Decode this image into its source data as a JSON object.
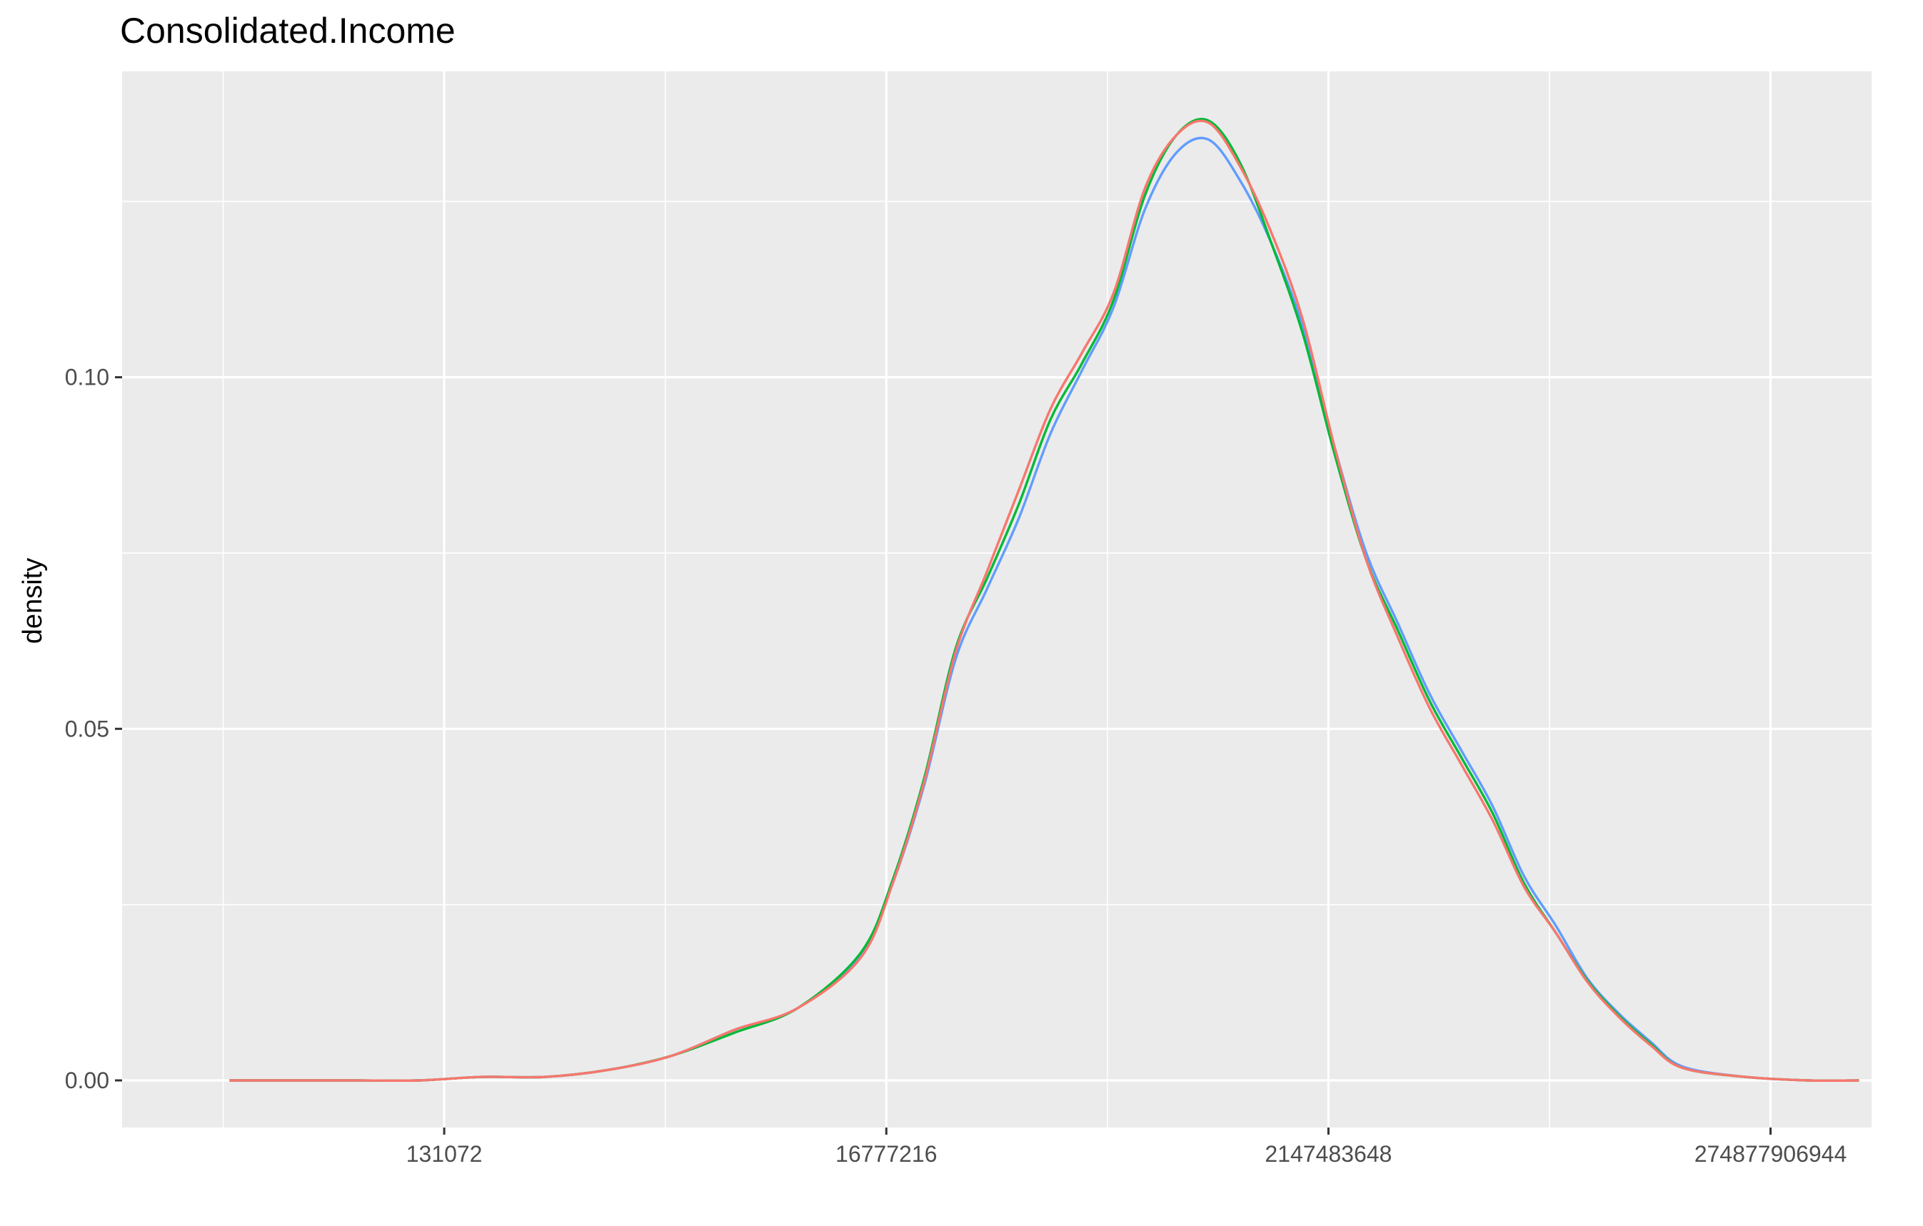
{
  "chart_data": {
    "type": "line",
    "title": "Consolidated.Income",
    "xlabel": "",
    "ylabel": "density",
    "x_scale": "log2",
    "x_ticks": [
      {
        "value": 131072,
        "label": "131072"
      },
      {
        "value": 16777216,
        "label": "16777216"
      },
      {
        "value": 2147483648,
        "label": "2147483648"
      },
      {
        "value": 274877906944,
        "label": "274877906944"
      }
    ],
    "y_ticks": [
      {
        "value": 0.0,
        "label": "0.00"
      },
      {
        "value": 0.05,
        "label": "0.05"
      },
      {
        "value": 0.1,
        "label": "0.10"
      }
    ],
    "xlim_log2": [
      11.9,
      39.6
    ],
    "ylim": [
      -0.0067,
      0.1435
    ],
    "grid": true,
    "legend": "none",
    "x_log2": [
      13.6,
      14.6,
      15.6,
      16.6,
      17.6,
      18.6,
      19.6,
      20.6,
      21.6,
      22.6,
      23.6,
      24.1,
      24.6,
      25.1,
      25.6,
      26.1,
      26.6,
      27.1,
      27.6,
      28.1,
      28.6,
      29.1,
      29.6,
      30.1,
      30.6,
      31.1,
      31.6,
      32.1,
      32.6,
      33.1,
      33.6,
      34.1,
      34.6,
      35.1,
      35.6,
      36.1,
      36.6,
      37.6,
      38.6,
      39.4
    ],
    "series": [
      {
        "color": "#619CFF",
        "values": [
          0.0,
          0.0,
          0.0,
          0.0,
          0.0005,
          0.0005,
          0.0015,
          0.0035,
          0.0072,
          0.0103,
          0.018,
          0.028,
          0.042,
          0.06,
          0.07,
          0.08,
          0.092,
          0.101,
          0.11,
          0.124,
          0.132,
          0.1338,
          0.128,
          0.119,
          0.107,
          0.09,
          0.075,
          0.065,
          0.055,
          0.047,
          0.039,
          0.029,
          0.022,
          0.0145,
          0.0095,
          0.0055,
          0.002,
          0.0005,
          0.0,
          0.0
        ]
      },
      {
        "color": "#00BA38",
        "values": [
          0.0,
          0.0,
          0.0,
          0.0,
          0.0005,
          0.0005,
          0.0015,
          0.0035,
          0.0068,
          0.0103,
          0.0182,
          0.0285,
          0.043,
          0.0615,
          0.0715,
          0.082,
          0.094,
          0.102,
          0.111,
          0.126,
          0.1345,
          0.1365,
          0.1305,
          0.119,
          0.106,
          0.089,
          0.074,
          0.064,
          0.054,
          0.046,
          0.038,
          0.028,
          0.021,
          0.0142,
          0.0092,
          0.0052,
          0.0018,
          0.0005,
          0.0,
          0.0
        ]
      },
      {
        "color": "#F8766D",
        "values": [
          0.0,
          0.0,
          0.0,
          0.0,
          0.0005,
          0.0005,
          0.0015,
          0.0035,
          0.0072,
          0.0103,
          0.0175,
          0.028,
          0.0425,
          0.061,
          0.0725,
          0.084,
          0.0955,
          0.1035,
          0.112,
          0.127,
          0.1345,
          0.1362,
          0.13,
          0.1205,
          0.108,
          0.09,
          0.074,
          0.063,
          0.053,
          0.045,
          0.037,
          0.0275,
          0.021,
          0.014,
          0.009,
          0.005,
          0.0018,
          0.0005,
          0.0,
          0.0
        ]
      }
    ]
  }
}
